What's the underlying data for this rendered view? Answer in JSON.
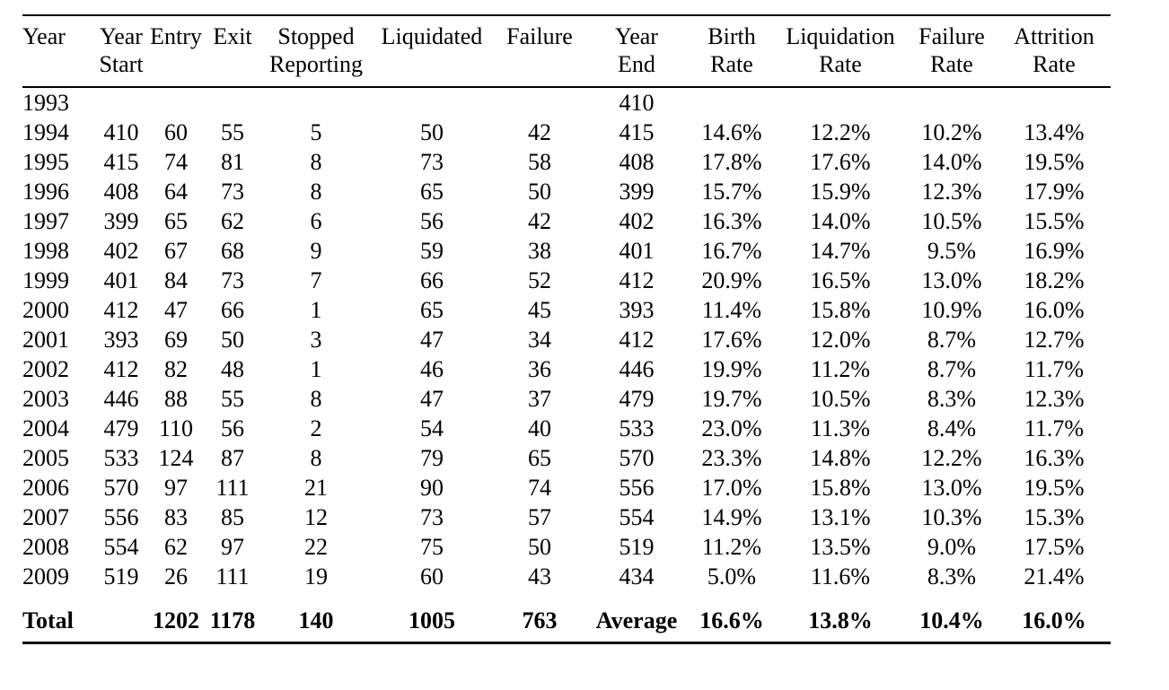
{
  "colors": {
    "background": "#ffffff",
    "text": "#000000",
    "rule": "#000000"
  },
  "table": {
    "columns": [
      {
        "id": "year",
        "line1": "Year",
        "line2": ""
      },
      {
        "id": "year_start",
        "line1": "Year",
        "line2": "Start"
      },
      {
        "id": "entry",
        "line1": "Entry",
        "line2": ""
      },
      {
        "id": "exit",
        "line1": "Exit",
        "line2": ""
      },
      {
        "id": "stopped_reporting",
        "line1": "Stopped",
        "line2": "Reporting"
      },
      {
        "id": "liquidated",
        "line1": "Liquidated",
        "line2": ""
      },
      {
        "id": "failure",
        "line1": "Failure",
        "line2": ""
      },
      {
        "id": "year_end",
        "line1": "Year",
        "line2": "End"
      },
      {
        "id": "birth_rate",
        "line1": "Birth",
        "line2": "Rate"
      },
      {
        "id": "liquidation_rate",
        "line1": "Liquidation",
        "line2": "Rate"
      },
      {
        "id": "failure_rate",
        "line1": "Failure",
        "line2": "Rate"
      },
      {
        "id": "attrition_rate",
        "line1": "Attrition",
        "line2": "Rate"
      }
    ],
    "rows": [
      [
        "1993",
        "",
        "",
        "",
        "",
        "",
        "",
        "410",
        "",
        "",
        "",
        ""
      ],
      [
        "1994",
        "410",
        "60",
        "55",
        "5",
        "50",
        "42",
        "415",
        "14.6%",
        "12.2%",
        "10.2%",
        "13.4%"
      ],
      [
        "1995",
        "415",
        "74",
        "81",
        "8",
        "73",
        "58",
        "408",
        "17.8%",
        "17.6%",
        "14.0%",
        "19.5%"
      ],
      [
        "1996",
        "408",
        "64",
        "73",
        "8",
        "65",
        "50",
        "399",
        "15.7%",
        "15.9%",
        "12.3%",
        "17.9%"
      ],
      [
        "1997",
        "399",
        "65",
        "62",
        "6",
        "56",
        "42",
        "402",
        "16.3%",
        "14.0%",
        "10.5%",
        "15.5%"
      ],
      [
        "1998",
        "402",
        "67",
        "68",
        "9",
        "59",
        "38",
        "401",
        "16.7%",
        "14.7%",
        "9.5%",
        "16.9%"
      ],
      [
        "1999",
        "401",
        "84",
        "73",
        "7",
        "66",
        "52",
        "412",
        "20.9%",
        "16.5%",
        "13.0%",
        "18.2%"
      ],
      [
        "2000",
        "412",
        "47",
        "66",
        "1",
        "65",
        "45",
        "393",
        "11.4%",
        "15.8%",
        "10.9%",
        "16.0%"
      ],
      [
        "2001",
        "393",
        "69",
        "50",
        "3",
        "47",
        "34",
        "412",
        "17.6%",
        "12.0%",
        "8.7%",
        "12.7%"
      ],
      [
        "2002",
        "412",
        "82",
        "48",
        "1",
        "46",
        "36",
        "446",
        "19.9%",
        "11.2%",
        "8.7%",
        "11.7%"
      ],
      [
        "2003",
        "446",
        "88",
        "55",
        "8",
        "47",
        "37",
        "479",
        "19.7%",
        "10.5%",
        "8.3%",
        "12.3%"
      ],
      [
        "2004",
        "479",
        "110",
        "56",
        "2",
        "54",
        "40",
        "533",
        "23.0%",
        "11.3%",
        "8.4%",
        "11.7%"
      ],
      [
        "2005",
        "533",
        "124",
        "87",
        "8",
        "79",
        "65",
        "570",
        "23.3%",
        "14.8%",
        "12.2%",
        "16.3%"
      ],
      [
        "2006",
        "570",
        "97",
        "111",
        "21",
        "90",
        "74",
        "556",
        "17.0%",
        "15.8%",
        "13.0%",
        "19.5%"
      ],
      [
        "2007",
        "556",
        "83",
        "85",
        "12",
        "73",
        "57",
        "554",
        "14.9%",
        "13.1%",
        "10.3%",
        "15.3%"
      ],
      [
        "2008",
        "554",
        "62",
        "97",
        "22",
        "75",
        "50",
        "519",
        "11.2%",
        "13.5%",
        "9.0%",
        "17.5%"
      ],
      [
        "2009",
        "519",
        "26",
        "111",
        "19",
        "60",
        "43",
        "434",
        "5.0%",
        "11.6%",
        "8.3%",
        "21.4%"
      ]
    ],
    "total_row": [
      "Total",
      "",
      "1202",
      "1178",
      "140",
      "1005",
      "763",
      "Average",
      "16.6%",
      "13.8%",
      "10.4%",
      "16.0%"
    ]
  }
}
